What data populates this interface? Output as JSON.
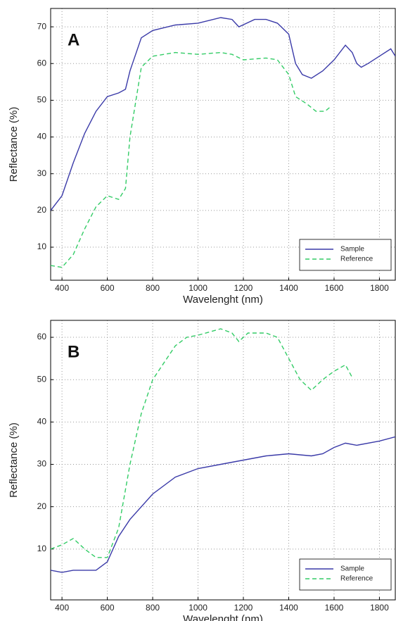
{
  "chart_data": [
    {
      "type": "line",
      "annotation": "A",
      "xlabel": "Wavelenght (nm)",
      "ylabel": "Reflectance (%)",
      "xlim": [
        350,
        1870
      ],
      "ylim": [
        1,
        75
      ],
      "xticks": [
        400,
        600,
        800,
        1000,
        1200,
        1400,
        1600,
        1800
      ],
      "yticks": [
        10,
        20,
        30,
        40,
        50,
        60,
        70
      ],
      "grid": true,
      "legend": "lower right",
      "series": [
        {
          "name": "Sample",
          "color": "#3a3aa8",
          "dashed": false,
          "x": [
            350,
            400,
            450,
            500,
            550,
            600,
            650,
            680,
            700,
            750,
            800,
            900,
            1000,
            1100,
            1150,
            1180,
            1250,
            1300,
            1350,
            1400,
            1430,
            1460,
            1500,
            1550,
            1600,
            1650,
            1680,
            1700,
            1720,
            1750,
            1800,
            1850,
            1870
          ],
          "values": [
            20,
            24,
            33,
            41,
            47,
            51,
            52,
            53,
            58,
            67,
            69,
            70.5,
            71,
            72.5,
            72,
            70,
            72,
            72,
            71,
            68,
            60,
            57,
            56,
            58,
            61,
            65,
            63,
            60,
            59,
            60,
            62,
            64,
            62
          ]
        },
        {
          "name": "Reference",
          "color": "#33cc66",
          "dashed": true,
          "x": [
            350,
            400,
            450,
            500,
            550,
            600,
            650,
            680,
            700,
            750,
            800,
            900,
            1000,
            1100,
            1150,
            1200,
            1300,
            1350,
            1400,
            1430,
            1480,
            1520,
            1560,
            1580
          ],
          "values": [
            5,
            4.5,
            8,
            15,
            21,
            24,
            23,
            26,
            40,
            59,
            62,
            63,
            62.5,
            63,
            62.5,
            61,
            61.5,
            61,
            57,
            51,
            49,
            47,
            47,
            48
          ]
        }
      ]
    },
    {
      "type": "line",
      "annotation": "B",
      "xlabel": "Wavelenght (nm)",
      "ylabel": "Reflectance (%)",
      "xlim": [
        350,
        1870
      ],
      "ylim": [
        -2,
        64
      ],
      "xticks": [
        400,
        600,
        800,
        1000,
        1200,
        1400,
        1600,
        1800
      ],
      "yticks": [
        10,
        20,
        30,
        40,
        50,
        60
      ],
      "grid": true,
      "legend": "lower right",
      "series": [
        {
          "name": "Sample",
          "color": "#3a3aa8",
          "dashed": false,
          "x": [
            350,
            400,
            450,
            550,
            600,
            650,
            700,
            800,
            900,
            1000,
            1100,
            1200,
            1300,
            1400,
            1500,
            1550,
            1600,
            1650,
            1700,
            1800,
            1870
          ],
          "values": [
            5,
            4.5,
            5,
            5,
            7,
            13,
            17,
            23,
            27,
            29,
            30,
            31,
            32,
            32.5,
            32,
            32.5,
            34,
            35,
            34.5,
            35.5,
            36.5
          ]
        },
        {
          "name": "Reference",
          "color": "#33cc66",
          "dashed": true,
          "x": [
            350,
            400,
            450,
            500,
            550,
            600,
            650,
            700,
            750,
            800,
            900,
            950,
            1000,
            1100,
            1150,
            1180,
            1220,
            1300,
            1350,
            1400,
            1450,
            1500,
            1550,
            1600,
            1650,
            1680
          ],
          "values": [
            10,
            11,
            12.5,
            10,
            8,
            8,
            15,
            30,
            42,
            50,
            58,
            60,
            60.5,
            62,
            61,
            59,
            61,
            61,
            60,
            55,
            50,
            47.5,
            50,
            52,
            53.5,
            50.5
          ]
        }
      ]
    }
  ]
}
